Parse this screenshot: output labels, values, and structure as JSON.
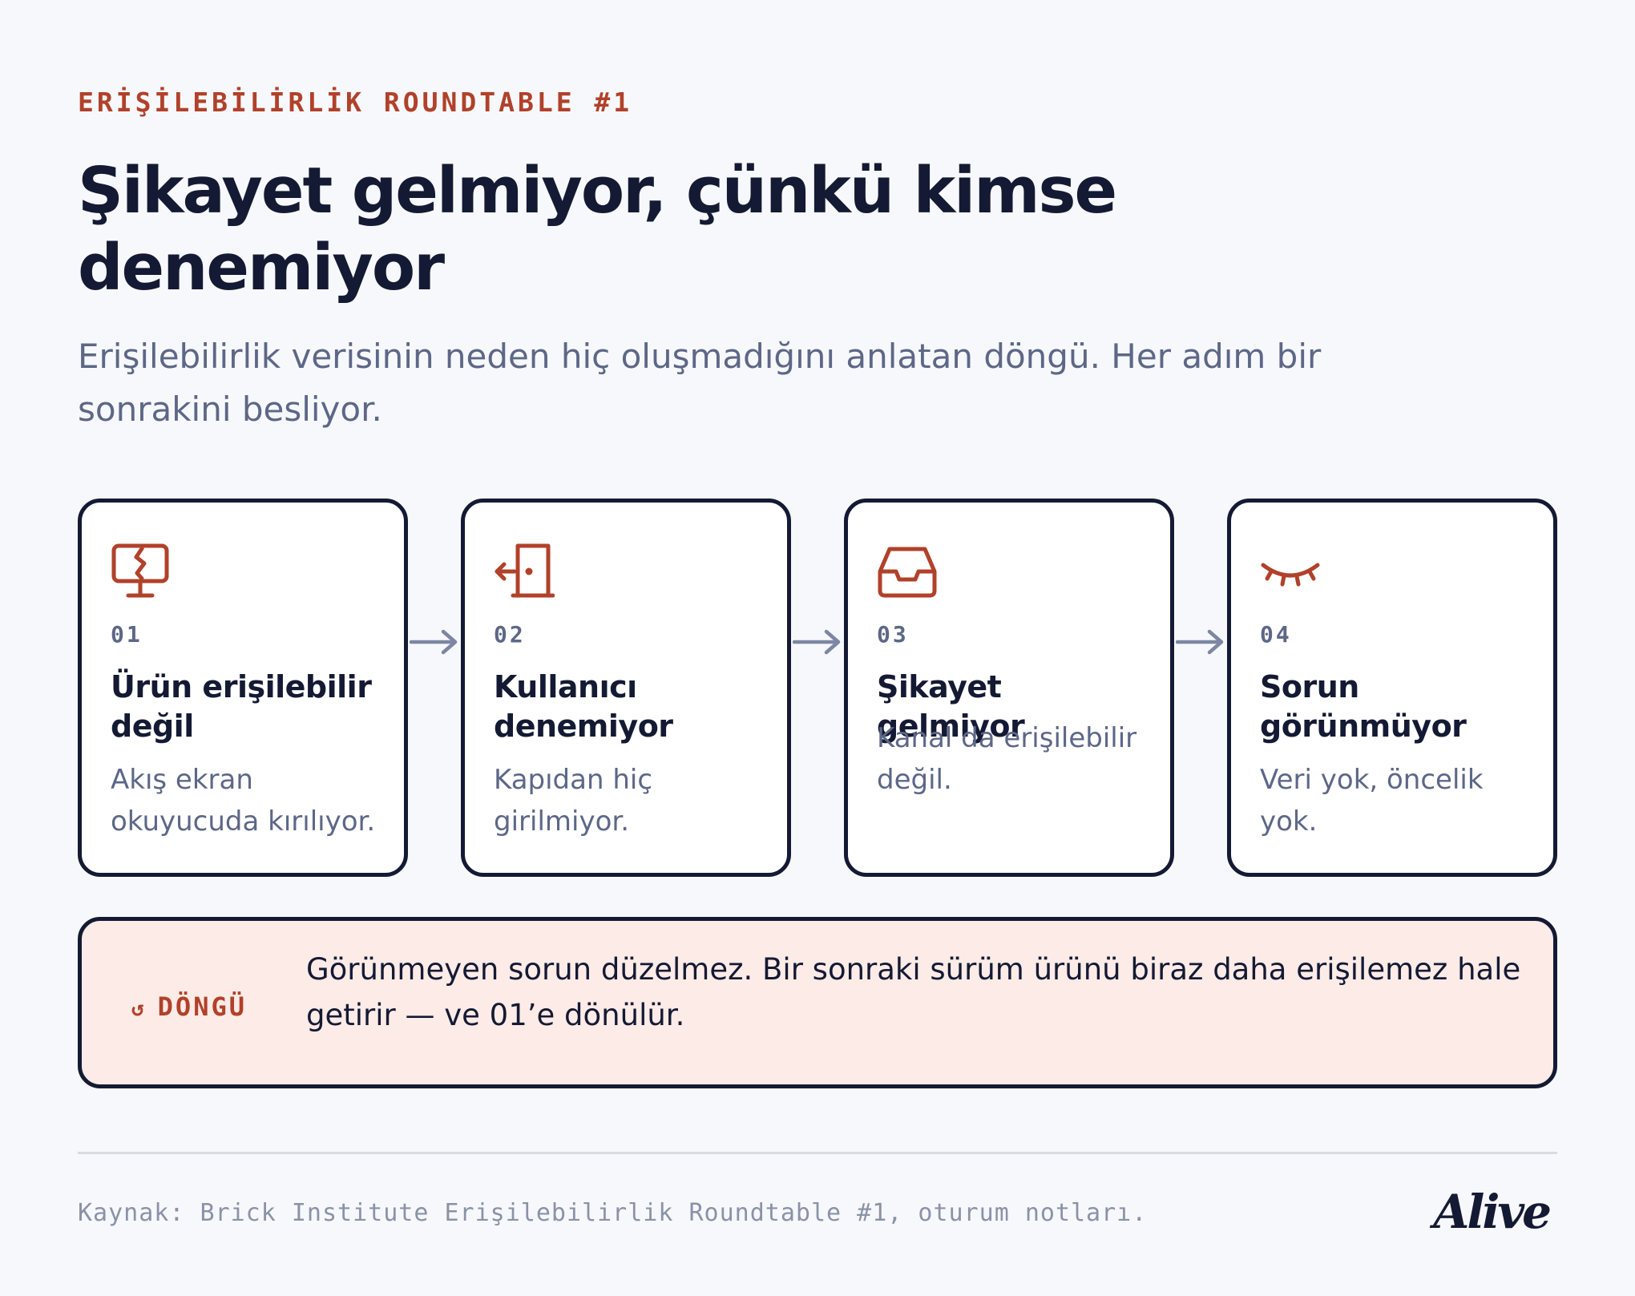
{
  "header": {
    "eyebrow": "ERİŞİLEBİLİRLİK ROUNDTABLE #1",
    "title": "Şikayet gelmiyor, çünkü kimse denemiyor",
    "subtitle": "Erişilebilirlik verisinin neden hiç oluşmadığını anlatan döngü. Her adım bir sonrakini besliyor."
  },
  "steps": [
    {
      "icon": "broken-monitor-icon",
      "number": "01",
      "title": "Ürün erişilebilir değil",
      "description": "Akış ekran okuyucuda kırılıyor."
    },
    {
      "icon": "door-exit-icon",
      "number": "02",
      "title": "Kullanıcı denemiyor",
      "description": "Kapıdan hiç girilmiyor."
    },
    {
      "icon": "inbox-icon",
      "number": "03",
      "title": "Şikayet gelmiyor",
      "description": "Kanal da erişilebilir değil."
    },
    {
      "icon": "closed-eye-icon",
      "number": "04",
      "title": "Sorun görünmüyor",
      "description": "Veri yok, öncelik yok."
    }
  ],
  "loop": {
    "glyph": "↺",
    "tag": "DÖNGÜ",
    "text": "Görünmeyen sorun düzelmez. Bir sonraki sürüm ürünü biraz daha erişilemez hale getirir — ve 01’e dönülür."
  },
  "footer": {
    "source": "Kaynak: Brick Institute Erişilebilirlik Roundtable #1, oturum notları.",
    "brand": "Alive"
  },
  "colors": {
    "accent": "#b1412a",
    "ink": "#141a33",
    "muted": "#5d6787",
    "arrow": "#7d86a3",
    "loop_bg": "#fdebe7",
    "page_bg": "#f7f8fb"
  }
}
